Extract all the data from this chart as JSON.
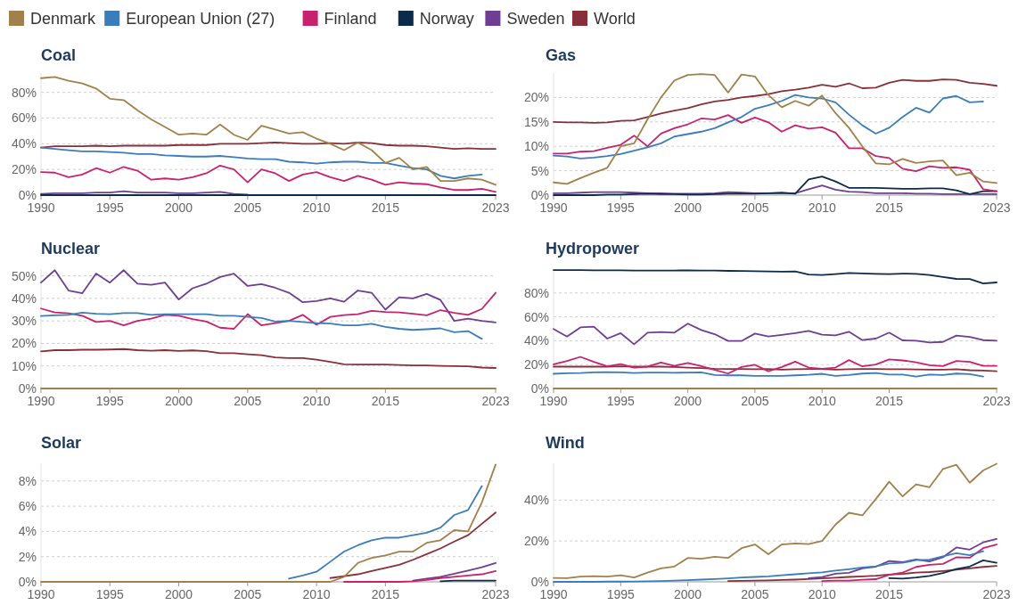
{
  "chart_data": [
    {
      "type": "line",
      "title": "Coal",
      "legend": "top",
      "grid": "y",
      "x": [
        1990,
        1991,
        1992,
        1993,
        1994,
        1995,
        1996,
        1997,
        1998,
        1999,
        2000,
        2001,
        2002,
        2003,
        2004,
        2005,
        2006,
        2007,
        2008,
        2009,
        2010,
        2011,
        2012,
        2013,
        2014,
        2015,
        2016,
        2017,
        2018,
        2019,
        2020,
        2021,
        2022,
        2023
      ],
      "xlim": [
        1990,
        2023
      ],
      "xticks": [
        1990,
        1995,
        2000,
        2005,
        2010,
        2015,
        2023
      ],
      "ylim": [
        0,
        95
      ],
      "yticks": [
        {
          "value": 0,
          "label": "0%"
        },
        {
          "value": 20,
          "label": "20%"
        },
        {
          "value": 40,
          "label": "40%"
        },
        {
          "value": 60,
          "label": "60%"
        },
        {
          "value": 80,
          "label": "80%"
        }
      ],
      "series": [
        {
          "name": "Denmark",
          "color": "#a2804b",
          "values": [
            91,
            92,
            89,
            87,
            83,
            75,
            74,
            66,
            59,
            53,
            47,
            48,
            47,
            55,
            47,
            43,
            54,
            51,
            48,
            49,
            44,
            40,
            35,
            41,
            35,
            25,
            29,
            20,
            22,
            11,
            11,
            13,
            12,
            8
          ]
        },
        {
          "name": "European Union (27)",
          "color": "#3b7cba",
          "values": [
            37,
            36,
            35,
            34,
            34,
            33.5,
            33,
            32,
            32,
            31,
            30.5,
            30,
            30,
            30.5,
            29.5,
            28.5,
            28,
            28,
            26,
            25.5,
            24.5,
            25.5,
            26,
            26,
            25,
            25,
            23,
            21,
            20,
            15,
            13,
            15,
            16,
            null
          ]
        },
        {
          "name": "Finland",
          "color": "#c8226e",
          "values": [
            18,
            17.5,
            14,
            16,
            21,
            17.5,
            22,
            19,
            12,
            13,
            12,
            14,
            17,
            23,
            20,
            10,
            20,
            17,
            11,
            16,
            18,
            14,
            11,
            15,
            12,
            8,
            10,
            9,
            8.5,
            6,
            4,
            4,
            5,
            2.5
          ]
        },
        {
          "name": "Norway",
          "color": "#0c2a4a",
          "values": [
            0,
            0,
            0,
            0,
            0,
            0,
            0,
            0,
            0,
            0,
            0,
            0,
            0,
            0,
            0,
            0,
            0,
            0,
            0,
            0,
            0,
            0,
            0,
            0,
            0,
            0,
            0,
            0,
            0,
            0,
            0,
            0,
            0,
            0
          ]
        },
        {
          "name": "Sweden",
          "color": "#6d3e91",
          "values": [
            1,
            1.5,
            1.5,
            1.5,
            2,
            2,
            3,
            2,
            2,
            2,
            1.5,
            1.5,
            2,
            2.5,
            1,
            0.5,
            null,
            null,
            null,
            null,
            null,
            null,
            null,
            null,
            null,
            null,
            null,
            null,
            null,
            null,
            null,
            null,
            null,
            null
          ]
        },
        {
          "name": "World",
          "color": "#883039",
          "values": [
            37,
            38,
            38,
            38,
            38.5,
            38,
            38.5,
            38.5,
            38.5,
            38.5,
            39,
            39,
            39,
            40,
            40,
            40,
            40.5,
            41,
            40.5,
            40,
            40,
            40.5,
            40,
            41,
            40.5,
            39,
            38.5,
            38.5,
            38,
            37,
            36,
            36.5,
            36,
            36
          ]
        }
      ]
    },
    {
      "type": "line",
      "title": "Gas",
      "grid": "y",
      "x": [
        1990,
        1991,
        1992,
        1993,
        1994,
        1995,
        1996,
        1997,
        1998,
        1999,
        2000,
        2001,
        2002,
        2003,
        2004,
        2005,
        2006,
        2007,
        2008,
        2009,
        2010,
        2011,
        2012,
        2013,
        2014,
        2015,
        2016,
        2017,
        2018,
        2019,
        2020,
        2021,
        2022,
        2023
      ],
      "xlim": [
        1990,
        2023
      ],
      "xticks": [
        1990,
        1995,
        2000,
        2005,
        2010,
        2015,
        2023
      ],
      "ylim": [
        0,
        25
      ],
      "yticks": [
        {
          "value": 0,
          "label": "0%"
        },
        {
          "value": 5,
          "label": "5%"
        },
        {
          "value": 10,
          "label": "10%"
        },
        {
          "value": 15,
          "label": "15%"
        },
        {
          "value": 20,
          "label": "20%"
        }
      ],
      "series": [
        {
          "color": "#a2804b",
          "values": [
            2.6,
            2.3,
            3.5,
            4.6,
            5.6,
            10,
            10.6,
            15.5,
            20,
            23.5,
            24.6,
            24.8,
            24.6,
            21,
            24.7,
            24.3,
            20.5,
            18,
            19.3,
            18.3,
            20.4,
            16.8,
            13.8,
            10,
            6.5,
            6.3,
            7.4,
            6.6,
            6.9,
            7.1,
            4.1,
            4.6,
            2.8,
            2.5
          ]
        },
        {
          "color": "#3b7cba",
          "values": [
            8.1,
            7.9,
            7.5,
            7.7,
            8,
            8.4,
            9.1,
            9.8,
            10.6,
            12,
            12.5,
            13,
            13.7,
            14.9,
            16,
            17.7,
            18.4,
            19.3,
            20.5,
            20,
            19.8,
            19,
            16.5,
            14.3,
            12.6,
            13.8,
            16,
            17.9,
            16.9,
            19.8,
            20.3,
            19,
            19.2,
            null
          ]
        },
        {
          "color": "#c8226e",
          "values": [
            8.5,
            8.5,
            8.9,
            9,
            9.7,
            10.3,
            12.2,
            10,
            12.6,
            13.7,
            14.5,
            15.7,
            15.5,
            16.4,
            14.8,
            15.9,
            14.9,
            13,
            14.3,
            13.6,
            13.9,
            12.8,
            9.6,
            9.6,
            8,
            7.6,
            5.4,
            4.9,
            5.9,
            5.6,
            5.7,
            5.2,
            1.2,
            0.8
          ]
        },
        {
          "color": "#0c2a4a",
          "values": [
            0,
            0,
            0,
            0,
            0.1,
            0.1,
            0.2,
            0.3,
            0.2,
            0.2,
            0.1,
            0.1,
            0.2,
            0.3,
            0.3,
            0.3,
            0.4,
            0.5,
            0.3,
            3.2,
            3.8,
            2.8,
            1.5,
            1.5,
            1.5,
            1.4,
            1.3,
            1.3,
            1.4,
            1.4,
            1,
            0.2,
            0.8,
            0.8
          ]
        },
        {
          "color": "#6d3e91",
          "values": [
            0.4,
            0.4,
            0.5,
            0.6,
            0.6,
            0.6,
            0.5,
            0.4,
            0.4,
            0.3,
            0.3,
            0.3,
            0.4,
            0.6,
            0.5,
            0.4,
            0.4,
            0.4,
            0.4,
            1.2,
            2,
            1.1,
            0.7,
            0.6,
            0.4,
            0.4,
            0.4,
            0.3,
            0.3,
            0.2,
            0.2,
            0.2,
            0.2,
            0.2
          ]
        },
        {
          "color": "#883039",
          "values": [
            15,
            14.9,
            14.9,
            14.8,
            14.9,
            15.2,
            15.3,
            16,
            16.7,
            17.3,
            17.8,
            18.6,
            19.2,
            19.5,
            20,
            20.3,
            20.7,
            21.3,
            21.6,
            22,
            22.6,
            22.2,
            22.9,
            21.9,
            22,
            23,
            23.6,
            23.4,
            23.4,
            23.7,
            23.6,
            23,
            22.8,
            22.4
          ]
        }
      ]
    },
    {
      "type": "line",
      "title": "Nuclear",
      "grid": "y",
      "x": [
        1990,
        1991,
        1992,
        1993,
        1994,
        1995,
        1996,
        1997,
        1998,
        1999,
        2000,
        2001,
        2002,
        2003,
        2004,
        2005,
        2006,
        2007,
        2008,
        2009,
        2010,
        2011,
        2012,
        2013,
        2014,
        2015,
        2016,
        2017,
        2018,
        2019,
        2020,
        2021,
        2022,
        2023
      ],
      "xlim": [
        1990,
        2023
      ],
      "xticks": [
        1990,
        1995,
        2000,
        2005,
        2010,
        2015,
        2023
      ],
      "ylim": [
        0,
        53
      ],
      "yticks": [
        {
          "value": 0,
          "label": "0%"
        },
        {
          "value": 10,
          "label": "10%"
        },
        {
          "value": 20,
          "label": "20%"
        },
        {
          "value": 30,
          "label": "30%"
        },
        {
          "value": 40,
          "label": "40%"
        },
        {
          "value": 50,
          "label": "50%"
        }
      ],
      "series": [
        {
          "color": "#a2804b",
          "values": [
            0,
            0,
            0,
            0,
            0,
            0,
            0,
            0,
            0,
            0,
            0,
            0,
            0,
            0,
            0,
            0,
            0,
            0,
            0,
            0,
            0,
            0,
            0,
            0,
            0,
            0,
            0,
            0,
            0,
            0,
            0,
            0,
            0,
            0
          ]
        },
        {
          "color": "#3b7cba",
          "values": [
            32.2,
            32.5,
            32.7,
            33.7,
            33.2,
            33,
            33.5,
            33.5,
            32.7,
            33,
            33,
            33,
            33,
            32.3,
            32.3,
            31.8,
            31.3,
            29.7,
            30,
            29.5,
            29,
            28.8,
            28,
            28,
            28.7,
            27.3,
            26.5,
            26,
            26.3,
            26.7,
            25,
            25.5,
            22,
            null
          ]
        },
        {
          "color": "#c8226e",
          "values": [
            35.5,
            33.8,
            33.4,
            32.3,
            29.5,
            30,
            28,
            30,
            31,
            32.7,
            32.3,
            30.8,
            29.7,
            27,
            26.5,
            33,
            28,
            29,
            30,
            32.7,
            28.3,
            31.8,
            32.6,
            33,
            34.5,
            34,
            33.8,
            33.2,
            32.5,
            34.8,
            33.6,
            32.7,
            35.3,
            42.5
          ]
        },
        {
          "color": "#6d3e91",
          "values": [
            47,
            52.5,
            43.5,
            42.3,
            51,
            47,
            52.5,
            46.5,
            46,
            47,
            39.5,
            44.5,
            46.5,
            49.5,
            51,
            45.5,
            46.3,
            44.7,
            42.5,
            38.3,
            38.8,
            40,
            38.5,
            43.5,
            42.5,
            35,
            40.5,
            40,
            42,
            39.3,
            30,
            31,
            30,
            29.3
          ]
        },
        {
          "color": "#883039",
          "values": [
            16.5,
            17,
            17,
            17.2,
            17.2,
            17.3,
            17.5,
            17,
            16.8,
            17,
            16.7,
            16.9,
            16.6,
            15.7,
            15.7,
            15.2,
            14.8,
            13.8,
            13.5,
            13.5,
            12.8,
            11.8,
            10.7,
            10.6,
            10.6,
            10.6,
            10.4,
            10.2,
            10.2,
            10,
            9.9,
            9.8,
            9.3,
            9.1
          ]
        }
      ]
    },
    {
      "type": "line",
      "title": "Hydropower",
      "grid": "y",
      "x": [
        1990,
        1991,
        1992,
        1993,
        1994,
        1995,
        1996,
        1997,
        1998,
        1999,
        2000,
        2001,
        2002,
        2003,
        2004,
        2005,
        2006,
        2007,
        2008,
        2009,
        2010,
        2011,
        2012,
        2013,
        2014,
        2015,
        2016,
        2017,
        2018,
        2019,
        2020,
        2021,
        2022,
        2023
      ],
      "xlim": [
        1990,
        2023
      ],
      "xticks": [
        1990,
        1995,
        2000,
        2005,
        2010,
        2015,
        2023
      ],
      "ylim": [
        0,
        100
      ],
      "yticks": [
        {
          "value": 0,
          "label": "0%"
        },
        {
          "value": 20,
          "label": "20%"
        },
        {
          "value": 40,
          "label": "40%"
        },
        {
          "value": 60,
          "label": "60%"
        },
        {
          "value": 80,
          "label": "80%"
        }
      ],
      "series": [
        {
          "color": "#a2804b",
          "values": [
            0,
            0,
            0,
            0,
            0,
            0,
            0,
            0,
            0,
            0,
            0,
            0,
            0,
            0,
            0,
            0,
            0,
            0,
            0,
            0,
            0,
            0,
            0,
            0,
            0,
            0,
            0,
            0,
            0,
            0,
            0,
            0,
            0,
            0
          ]
        },
        {
          "color": "#3b7cba",
          "values": [
            12.3,
            12.8,
            13,
            13.5,
            13.7,
            13.5,
            13,
            13.3,
            13.3,
            13.2,
            13.3,
            13.5,
            11.3,
            11,
            11,
            10.5,
            10.5,
            10.5,
            11,
            11.5,
            12.3,
            10.5,
            11.3,
            12.5,
            13,
            11.7,
            11.7,
            10,
            11.7,
            11.3,
            12.5,
            12,
            10,
            null
          ]
        },
        {
          "color": "#c8226e",
          "values": [
            20.2,
            23,
            26.5,
            22.3,
            18.5,
            20.5,
            17.5,
            18.3,
            21.8,
            19,
            21.3,
            18.7,
            15.5,
            12.5,
            18,
            19.8,
            14.5,
            18,
            22.5,
            17.5,
            16.5,
            17.5,
            23.8,
            18.5,
            20,
            24.3,
            23.5,
            22,
            19.5,
            18.7,
            23,
            22.3,
            19,
            19
          ]
        },
        {
          "color": "#0c2a4a",
          "values": [
            99.2,
            99.2,
            99.2,
            99,
            98.9,
            99,
            98.8,
            98.8,
            98.8,
            98.8,
            99,
            98.8,
            98.8,
            98.5,
            98.4,
            98.3,
            98,
            97.8,
            98,
            95.5,
            95,
            95.8,
            96.8,
            96.3,
            96,
            95.8,
            96.2,
            96,
            95,
            93.3,
            91.8,
            91.7,
            88,
            88.8
          ]
        },
        {
          "color": "#6d3e91",
          "values": [
            49.8,
            43.5,
            51.2,
            51.8,
            41.8,
            46.3,
            37,
            46.7,
            47.3,
            46.8,
            54.3,
            49,
            45.5,
            39.8,
            39.8,
            46,
            43.5,
            44.8,
            46.3,
            48.3,
            45,
            44.5,
            47.5,
            40.5,
            41.8,
            46.8,
            40.3,
            40,
            38.5,
            39,
            44.3,
            43.2,
            40.5,
            40
          ]
        },
        {
          "color": "#883039",
          "values": [
            18.3,
            18.3,
            18.3,
            18.3,
            18.3,
            18.5,
            18.3,
            18.3,
            18.3,
            18,
            17.5,
            17,
            16.5,
            16.3,
            16.3,
            16.2,
            16.3,
            15.8,
            16.2,
            16.3,
            16.3,
            15.8,
            16.2,
            16.3,
            16.3,
            16.2,
            16.2,
            16,
            15.8,
            15.8,
            16.2,
            15.3,
            15,
            14.5
          ]
        }
      ]
    },
    {
      "type": "line",
      "title": "Solar",
      "grid": "y",
      "x": [
        1990,
        1991,
        1992,
        1993,
        1994,
        1995,
        1996,
        1997,
        1998,
        1999,
        2000,
        2001,
        2002,
        2003,
        2004,
        2005,
        2006,
        2007,
        2008,
        2009,
        2010,
        2011,
        2012,
        2013,
        2014,
        2015,
        2016,
        2017,
        2018,
        2019,
        2020,
        2021,
        2022,
        2023
      ],
      "xlim": [
        1990,
        2023
      ],
      "xticks": [
        1990,
        1995,
        2000,
        2005,
        2010,
        2015,
        2023
      ],
      "ylim": [
        0,
        9.4
      ],
      "yticks": [
        {
          "value": 0,
          "label": "0%"
        },
        {
          "value": 2,
          "label": "2%"
        },
        {
          "value": 4,
          "label": "4%"
        },
        {
          "value": 6,
          "label": "6%"
        },
        {
          "value": 8,
          "label": "8%"
        }
      ],
      "series": [
        {
          "color": "#a2804b",
          "values": [
            0,
            0,
            0,
            0,
            0,
            0,
            0,
            0,
            0,
            0,
            0,
            0,
            0,
            0,
            0,
            0,
            0,
            0,
            0,
            0,
            0,
            0,
            0.4,
            1.5,
            1.9,
            2.1,
            2.4,
            2.4,
            3.1,
            3.3,
            4.1,
            4,
            6.3,
            9.3
          ]
        },
        {
          "color": "#3b7cba",
          "values": [
            null,
            null,
            null,
            null,
            null,
            null,
            null,
            null,
            null,
            null,
            null,
            null,
            null,
            null,
            null,
            null,
            null,
            null,
            0.25,
            0.5,
            0.8,
            1.6,
            2.4,
            2.9,
            3.3,
            3.5,
            3.5,
            3.7,
            3.9,
            4.3,
            5.3,
            5.7,
            7.6,
            null
          ]
        },
        {
          "color": "#c8226e",
          "values": [
            null,
            null,
            null,
            null,
            null,
            null,
            null,
            null,
            null,
            null,
            null,
            null,
            null,
            null,
            null,
            null,
            null,
            null,
            null,
            null,
            null,
            null,
            0,
            0,
            0,
            0,
            0,
            0.05,
            0.15,
            0.3,
            0.4,
            0.5,
            0.6,
            0.85
          ]
        },
        {
          "color": "#0c2a4a",
          "values": [
            null,
            null,
            null,
            null,
            null,
            null,
            null,
            null,
            null,
            null,
            null,
            null,
            null,
            null,
            null,
            null,
            null,
            null,
            null,
            null,
            null,
            null,
            null,
            null,
            null,
            null,
            null,
            null,
            null,
            0.05,
            0.1,
            0.1,
            0.1,
            0.1
          ]
        },
        {
          "color": "#6d3e91",
          "values": [
            null,
            null,
            null,
            null,
            null,
            null,
            null,
            null,
            null,
            null,
            null,
            null,
            null,
            null,
            null,
            null,
            null,
            null,
            null,
            null,
            null,
            null,
            null,
            null,
            null,
            null,
            null,
            0.1,
            0.25,
            0.4,
            0.65,
            0.9,
            1.15,
            1.5
          ]
        },
        {
          "color": "#883039",
          "values": [
            null,
            null,
            null,
            null,
            null,
            null,
            null,
            null,
            null,
            null,
            null,
            null,
            null,
            null,
            null,
            null,
            null,
            null,
            null,
            null,
            null,
            0.3,
            0.45,
            0.6,
            0.85,
            1.1,
            1.35,
            1.75,
            2.2,
            2.65,
            3.2,
            3.7,
            4.6,
            5.5
          ]
        }
      ]
    },
    {
      "type": "line",
      "title": "Wind",
      "grid": "y",
      "x": [
        1990,
        1991,
        1992,
        1993,
        1994,
        1995,
        1996,
        1997,
        1998,
        1999,
        2000,
        2001,
        2002,
        2003,
        2004,
        2005,
        2006,
        2007,
        2008,
        2009,
        2010,
        2011,
        2012,
        2013,
        2014,
        2015,
        2016,
        2017,
        2018,
        2019,
        2020,
        2021,
        2022,
        2023
      ],
      "xlim": [
        1990,
        2023
      ],
      "xticks": [
        1990,
        1995,
        2000,
        2005,
        2010,
        2015,
        2023
      ],
      "ylim": [
        0,
        58
      ],
      "yticks": [
        {
          "value": 0,
          "label": "0%"
        },
        {
          "value": 20,
          "label": "20%"
        },
        {
          "value": 40,
          "label": "40%"
        }
      ],
      "series": [
        {
          "color": "#a2804b",
          "values": [
            1.9,
            1.8,
            2.6,
            2.8,
            2.6,
            3.2,
            2.1,
            4.5,
            6.6,
            7.5,
            11.7,
            11.3,
            12.3,
            11.7,
            16.5,
            18.3,
            13.5,
            18.3,
            18.8,
            18.5,
            20,
            28,
            33.8,
            32.5,
            40.5,
            49,
            41.8,
            47.7,
            46.3,
            55.2,
            57.3,
            48.5,
            54.5,
            57.8
          ]
        },
        {
          "color": "#3b7cba",
          "values": [
            0,
            0,
            0,
            0,
            0.1,
            0.1,
            0.2,
            0.3,
            0.4,
            0.6,
            0.8,
            1.1,
            1.4,
            1.7,
            2.1,
            2.4,
            2.7,
            3.2,
            3.7,
            4.2,
            4.6,
            5.5,
            6.2,
            7,
            7.6,
            9,
            9.3,
            10.6,
            10.8,
            12.5,
            14,
            13,
            15,
            null
          ]
        },
        {
          "color": "#c8226e",
          "values": [
            null,
            null,
            null,
            null,
            null,
            null,
            null,
            null,
            null,
            null,
            null,
            null,
            null,
            null,
            null,
            null,
            null,
            null,
            null,
            null,
            0.4,
            0.6,
            0.6,
            1,
            1.3,
            3.4,
            4.5,
            7.3,
            8.3,
            8.8,
            12,
            11.8,
            16.5,
            18.3
          ]
        },
        {
          "color": "#0c2a4a",
          "values": [
            null,
            null,
            null,
            null,
            null,
            null,
            null,
            null,
            null,
            null,
            null,
            null,
            null,
            null,
            null,
            null,
            null,
            null,
            null,
            null,
            null,
            null,
            null,
            null,
            null,
            1.8,
            1.6,
            2.1,
            2.9,
            4.3,
            6.3,
            7.5,
            10.5,
            9.3
          ]
        },
        {
          "color": "#6d3e91",
          "values": [
            null,
            null,
            null,
            null,
            null,
            null,
            null,
            null,
            null,
            null,
            null,
            null,
            null,
            null,
            null,
            null,
            null,
            null,
            null,
            1.8,
            2.3,
            4,
            4.4,
            6.6,
            7.4,
            10.2,
            9.6,
            11,
            10,
            12,
            16.8,
            15.8,
            19.3,
            21
          ]
        },
        {
          "color": "#883039",
          "values": [
            null,
            null,
            null,
            null,
            null,
            null,
            null,
            null,
            null,
            null,
            null,
            null,
            null,
            0.4,
            0.5,
            0.6,
            0.7,
            0.9,
            1.1,
            1.4,
            1.7,
            2,
            2.4,
            2.7,
            3,
            3.5,
            3.9,
            4.5,
            4.8,
            5.3,
            5.9,
            6.6,
            7.3,
            7.8
          ]
        }
      ]
    }
  ]
}
